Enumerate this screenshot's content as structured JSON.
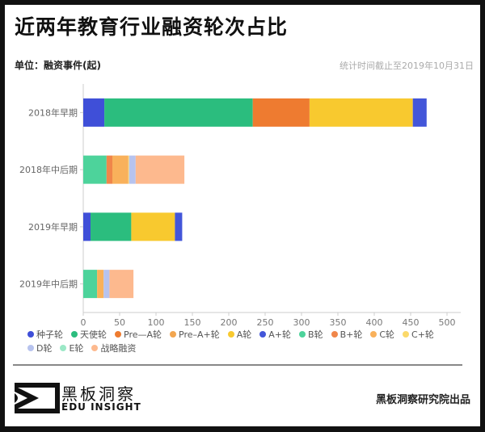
{
  "title": "近两年教育行业融资轮次占比",
  "unit_label": "单位：融资事件(起)",
  "date_note": "统计时间截止至2019年10月31日",
  "footer": {
    "logo_cn": "黑板洞察",
    "logo_en": "EDU INSIGHT",
    "credit": "黑板洞察研究院出品"
  },
  "chart_data": {
    "type": "bar",
    "orientation": "horizontal",
    "stacked": true,
    "categories": [
      "2018年早期",
      "2018年中后期",
      "2019年早期",
      "2019年中后期"
    ],
    "xlim": [
      0,
      500
    ],
    "xticks": [
      0,
      50,
      100,
      150,
      200,
      250,
      300,
      350,
      400,
      450,
      500
    ],
    "grid": false,
    "legend_position": "bottom",
    "series": [
      {
        "name": "种子轮",
        "color": "#3f4fd8",
        "values": [
          29,
          0,
          10,
          0
        ]
      },
      {
        "name": "天使轮",
        "color": "#2bbd7e",
        "values": [
          204,
          0,
          56,
          0
        ]
      },
      {
        "name": "Pre—A轮",
        "color": "#ee7b30",
        "values": [
          78,
          0,
          0,
          0
        ]
      },
      {
        "name": "Pre–A+轮",
        "color": "#f2a650",
        "values": [
          0,
          0,
          0,
          0
        ]
      },
      {
        "name": "A轮",
        "color": "#f8c92f",
        "values": [
          142,
          0,
          60,
          0
        ]
      },
      {
        "name": "A+轮",
        "color": "#4356d9",
        "values": [
          19,
          0,
          10,
          0
        ]
      },
      {
        "name": "B轮",
        "color": "#4dd39b",
        "values": [
          0,
          32,
          0,
          19
        ]
      },
      {
        "name": "B+轮",
        "color": "#f0864a",
        "values": [
          0,
          8,
          0,
          0
        ]
      },
      {
        "name": "C轮",
        "color": "#f9b15b",
        "values": [
          0,
          22,
          0,
          9
        ]
      },
      {
        "name": "C+轮",
        "color": "#fbd96a",
        "values": [
          0,
          1,
          0,
          0
        ]
      },
      {
        "name": "D轮",
        "color": "#b7c3ee",
        "values": [
          0,
          9,
          0,
          8
        ]
      },
      {
        "name": "E轮",
        "color": "#9be8c6",
        "values": [
          0,
          0,
          0,
          0
        ]
      },
      {
        "name": "战略融资",
        "color": "#fdb98e",
        "values": [
          0,
          67,
          0,
          33
        ]
      }
    ]
  }
}
